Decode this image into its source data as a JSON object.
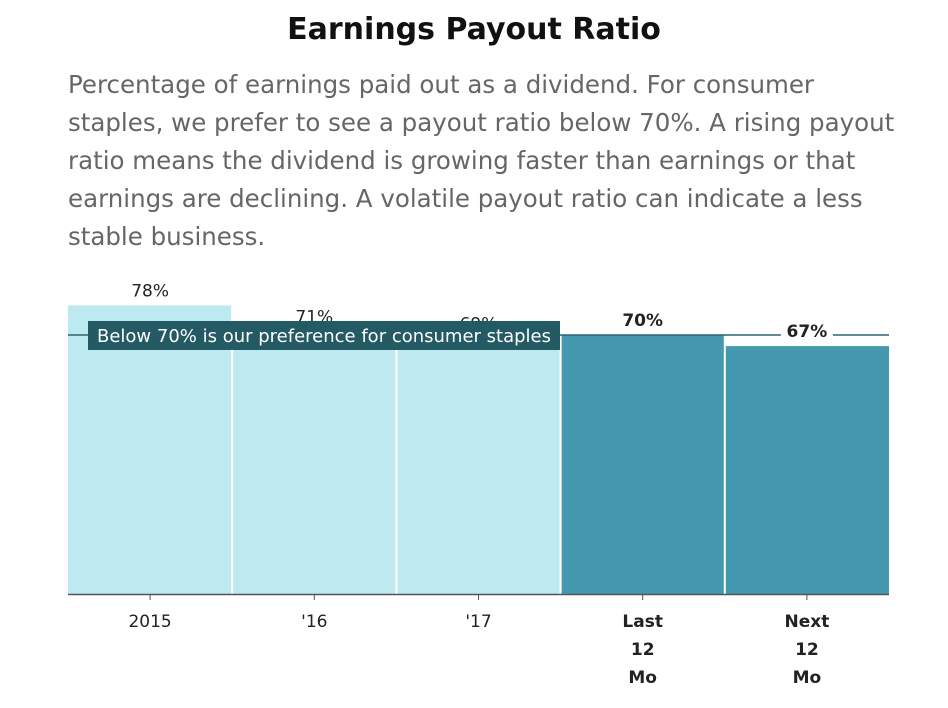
{
  "header": {
    "title": "Earnings Payout Ratio",
    "description": "Percentage of earnings paid out as a dividend. For consumer staples, we prefer to see a payout ratio below 70%. A rising payout ratio means the dividend is growing faster than earnings or that earnings are declining. A volatile payout ratio can indicate a less stable business."
  },
  "chart_data": {
    "type": "bar",
    "categories": [
      "2015",
      "'16",
      "'17",
      "Last 12 Mo",
      "Next 12 Mo"
    ],
    "category_lines": [
      [
        "2015"
      ],
      [
        "'16"
      ],
      [
        "'17"
      ],
      [
        "Last",
        "12",
        "Mo"
      ],
      [
        "Next",
        "12",
        "Mo"
      ]
    ],
    "values": [
      78,
      71,
      69,
      70,
      67
    ],
    "labels": [
      "78%",
      "71%",
      "69%",
      "70%",
      "67%"
    ],
    "emphasis": [
      false,
      false,
      false,
      true,
      true
    ],
    "ylim": [
      0,
      100
    ],
    "reference_line": {
      "value": 70,
      "label": "Below 70% is our preference for consumer staples"
    },
    "colors": {
      "historical_bar": "#bde9f0",
      "projected_bar": "#4499ae",
      "reference_line": "#2c6472",
      "reference_label_bg": "#245a63",
      "reference_label_text": "#ffffff",
      "axis": "#555555",
      "text": "#222222"
    }
  }
}
